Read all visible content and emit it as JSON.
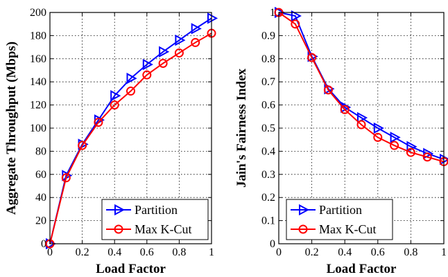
{
  "chart_data": [
    {
      "type": "line",
      "xlabel": "Load Factor",
      "ylabel": "Aggregate Throughput (Mbps)",
      "xlim": [
        0,
        1
      ],
      "ylim": [
        0,
        200
      ],
      "xticks": [
        0,
        0.2,
        0.4,
        0.6,
        0.8,
        1
      ],
      "xtick_labels": [
        "0",
        "0.2",
        "0.4",
        "0.6",
        "0.8",
        "1"
      ],
      "yticks": [
        0,
        20,
        40,
        60,
        80,
        100,
        120,
        140,
        160,
        180,
        200
      ],
      "ytick_labels": [
        "0",
        "20",
        "40",
        "60",
        "80",
        "100",
        "120",
        "140",
        "160",
        "180",
        "200"
      ],
      "grid": true,
      "legend_position": "bottom-right",
      "x": [
        0,
        0.1,
        0.2,
        0.3,
        0.4,
        0.5,
        0.6,
        0.7,
        0.8,
        0.9,
        1.0
      ],
      "series": [
        {
          "name": "Partition",
          "color": "#0000ff",
          "marker": "triangle-right",
          "values": [
            0,
            59,
            86,
            107,
            128,
            143,
            155,
            166,
            176,
            186,
            195
          ]
        },
        {
          "name": "Max K-Cut",
          "color": "#ff0000",
          "marker": "circle",
          "values": [
            0,
            57,
            85,
            105,
            120,
            132,
            146,
            156,
            165,
            174,
            182
          ]
        }
      ]
    },
    {
      "type": "line",
      "xlabel": "Load Factor",
      "ylabel": "Jain's Fairness Index",
      "xlim": [
        0,
        1
      ],
      "ylim": [
        0,
        1
      ],
      "xticks": [
        0,
        0.2,
        0.4,
        0.6,
        0.8,
        1
      ],
      "xtick_labels": [
        "0",
        "0.2",
        "0.4",
        "0.6",
        "0.8",
        "1"
      ],
      "yticks": [
        0,
        0.1,
        0.2,
        0.3,
        0.4,
        0.5,
        0.6,
        0.7,
        0.8,
        0.9,
        1
      ],
      "ytick_labels": [
        "0",
        "0.1",
        "0.2",
        "0.3",
        "0.4",
        "0.5",
        "0.6",
        "0.7",
        "0.8",
        "0.9",
        "1"
      ],
      "grid": true,
      "legend_position": "bottom-right",
      "x": [
        0,
        0.1,
        0.2,
        0.3,
        0.4,
        0.5,
        0.6,
        0.7,
        0.8,
        0.9,
        1.0
      ],
      "series": [
        {
          "name": "Partition",
          "color": "#0000ff",
          "marker": "triangle-right",
          "values": [
            1.0,
            0.985,
            0.81,
            0.67,
            0.59,
            0.545,
            0.5,
            0.46,
            0.42,
            0.39,
            0.365
          ]
        },
        {
          "name": "Max K-Cut",
          "color": "#ff0000",
          "marker": "circle",
          "values": [
            1.0,
            0.95,
            0.805,
            0.665,
            0.58,
            0.515,
            0.46,
            0.425,
            0.395,
            0.375,
            0.355
          ]
        }
      ]
    }
  ]
}
